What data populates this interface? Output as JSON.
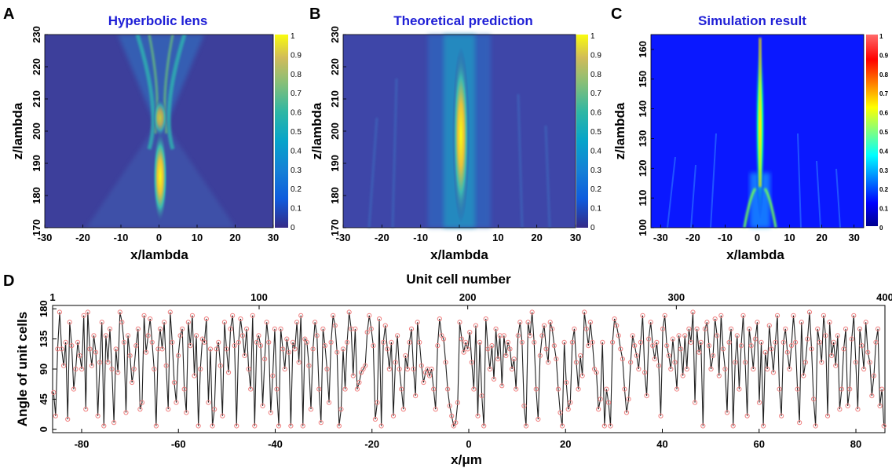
{
  "chart_data": [
    {
      "label": "A",
      "type": "heatmap",
      "title": "Hyperbolic lens",
      "xlabel": "x/lambda",
      "ylabel": "z/lambda",
      "xlim": [
        -30,
        30
      ],
      "ylim": [
        170,
        230
      ],
      "xticks": [
        -30,
        -20,
        -10,
        0,
        10,
        20,
        30
      ],
      "yticks": [
        170,
        180,
        190,
        200,
        210,
        220,
        230
      ],
      "colorbar_ticks": [
        "0",
        "0.1",
        "0.2",
        "0.3",
        "0.4",
        "0.5",
        "0.6",
        "0.7",
        "0.8",
        "0.9",
        "1"
      ],
      "colormap": "parula",
      "focus": {
        "x": 0.5,
        "z": 186
      }
    },
    {
      "label": "B",
      "type": "heatmap",
      "title": "Theoretical prediction",
      "xlabel": "x/lambda",
      "ylabel": "z/lambda",
      "xlim": [
        -30,
        30
      ],
      "ylim": [
        170,
        230
      ],
      "xticks": [
        -30,
        -20,
        -10,
        0,
        10,
        20,
        30
      ],
      "yticks": [
        170,
        180,
        190,
        200,
        210,
        220,
        230
      ],
      "colorbar_ticks": [
        "0",
        "0.1",
        "0.2",
        "0.3",
        "0.4",
        "0.5",
        "0.6",
        "0.7",
        "0.8",
        "0.9",
        "1"
      ],
      "colormap": "parula",
      "focus": {
        "x": 0.5,
        "z": 204
      }
    },
    {
      "label": "C",
      "type": "heatmap",
      "title": "Simulation result",
      "xlabel": "x/lambda",
      "ylabel": "z/lambda",
      "xlim": [
        -33,
        33
      ],
      "ylim": [
        100,
        165
      ],
      "xticks": [
        -30,
        -20,
        -10,
        0,
        10,
        20,
        30
      ],
      "yticks": [
        100,
        110,
        120,
        130,
        140,
        150,
        160
      ],
      "colorbar_ticks": [
        "0",
        "0.1",
        "0.2",
        "0.3",
        "0.4",
        "0.5",
        "0.6",
        "0.7",
        "0.8",
        "0.9",
        "1"
      ],
      "colormap": "jet",
      "focus": {
        "x": 0,
        "z": 140
      }
    },
    {
      "label": "D",
      "type": "line",
      "xlabel": "x/μm",
      "ylabel": "Angle of unit cells",
      "top_xlabel": "Unit cell number",
      "xlim": [
        -86,
        86
      ],
      "ylim": [
        -5,
        185
      ],
      "xticks": [
        -80,
        -60,
        -40,
        -20,
        0,
        20,
        40,
        60,
        80
      ],
      "yticks": [
        0,
        45,
        90,
        135,
        180
      ],
      "top_xticks": [
        1,
        100,
        200,
        300,
        400
      ],
      "top_xlim": [
        1,
        400
      ],
      "series": [
        {
          "marker_color": "#f08080",
          "line_color": "#222222",
          "values": [
            55,
            20,
            120,
            175,
            120,
            95,
            130,
            15,
            160,
            125,
            60,
            90,
            130,
            110,
            90,
            170,
            30,
            175,
            120,
            95,
            140,
            115,
            20,
            100,
            160,
            5,
            140,
            100,
            150,
            90,
            10,
            120,
            85,
            175,
            160,
            130,
            25,
            140,
            110,
            70,
            90,
            125,
            150,
            30,
            40,
            170,
            115,
            140,
            165,
            130,
            90,
            5,
            120,
            150,
            120,
            160,
            95,
            30,
            175,
            130,
            70,
            40,
            110,
            140,
            150,
            60,
            25,
            160,
            125,
            170,
            80,
            140,
            5,
            90,
            135,
            130,
            165,
            40,
            120,
            5,
            30,
            120,
            130,
            95,
            20,
            160,
            120,
            85,
            150,
            170,
            125,
            5,
            130,
            165,
            140,
            110,
            150,
            90,
            60,
            170,
            5,
            130,
            140,
            125,
            35,
            105,
            160,
            130,
            25,
            80,
            150,
            60,
            5,
            150,
            120,
            90,
            135,
            115,
            5,
            130,
            120,
            160,
            100,
            170,
            5,
            135,
            130,
            95,
            30,
            120,
            160,
            140,
            60,
            10,
            150,
            125,
            90,
            40,
            130,
            170,
            155,
            115,
            5,
            30,
            120,
            60,
            130,
            175,
            150,
            80,
            150,
            60,
            70,
            85,
            90,
            95,
            145,
            170,
            150,
            125,
            15,
            40,
            165,
            5,
            130,
            155,
            120,
            90,
            130,
            20,
            100,
            140,
            90,
            60,
            30,
            110,
            90,
            130,
            150,
            90,
            50,
            160,
            130,
            95,
            70,
            85,
            90,
            80,
            90,
            60,
            30,
            125,
            165,
            140,
            135,
            100,
            60,
            35,
            20,
            5,
            10,
            40,
            160,
            135,
            115,
            130,
            120,
            145,
            100,
            60,
            155,
            20,
            130,
            50,
            5,
            165,
            120,
            90,
            125,
            75,
            150,
            105,
            140,
            65,
            140,
            110,
            130,
            120,
            90,
            105,
            60,
            140,
            160,
            130,
            35,
            5,
            160,
            140,
            175,
            130,
            60,
            15,
            110,
            140,
            155,
            120,
            100,
            160,
            150,
            125,
            105,
            60,
            25,
            5,
            130,
            70,
            30,
            40,
            130,
            150,
            100,
            60,
            110,
            80,
            175,
            150,
            125,
            160,
            130,
            90,
            85,
            30,
            45,
            130,
            5,
            60,
            40,
            5,
            130,
            165,
            155,
            140,
            120,
            105,
            60,
            25,
            45,
            100,
            140,
            125,
            110,
            90,
            130,
            170,
            85,
            50,
            135,
            160,
            125,
            105,
            130,
            95,
            20,
            150,
            170,
            125,
            110,
            90,
            135,
            100,
            60,
            140,
            120,
            80,
            140,
            90,
            150,
            130,
            175,
            40,
            150,
            115,
            130,
            5,
            150,
            160,
            125,
            90,
            110,
            165,
            140,
            80,
            170,
            120,
            90,
            25,
            130,
            150,
            5,
            100,
            140,
            60,
            125,
            170,
            100,
            20,
            150,
            125,
            90,
            135,
            160,
            40,
            130,
            5,
            115,
            90,
            155,
            120,
            85,
            130,
            170,
            60,
            20,
            130,
            150,
            115,
            90,
            125,
            170,
            130,
            60,
            10,
            160,
            80,
            100,
            135,
            175,
            120,
            45,
            5,
            150,
            130,
            100,
            170,
            140,
            20,
            160,
            110,
            130,
            95,
            140,
            30,
            60,
            120,
            150,
            35,
            60,
            135,
            170,
            100,
            30,
            150,
            125,
            90,
            160,
            115,
            100,
            50,
            80,
            130,
            150,
            35,
            60,
            5
          ]
        }
      ]
    }
  ]
}
